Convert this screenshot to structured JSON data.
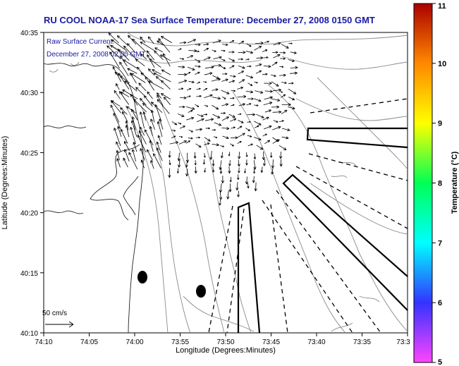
{
  "title": "RU COOL  NOAA-17  Sea Surface Temperature:  December 27, 2008 0150 GMT",
  "current_label": "Raw Surface Current:",
  "current_time": "December 27, 2008 02:00 GMT",
  "scale_label": "50 cm/s",
  "x_axis_label": "Longitude (Degrees:Minutes)",
  "y_axis_label": "Latitude (Degrees:Minutes)",
  "x_ticks": [
    "74:10",
    "74:05",
    "74:00",
    "73:55",
    "73:50",
    "73:45",
    "73:40",
    "73:35",
    "73:3"
  ],
  "y_ticks": [
    "40:35",
    "40:30",
    "40:25",
    "40:20",
    "40:15",
    "40:10"
  ],
  "colorbar": {
    "label": "Temperature (°C)",
    "ticks": [
      "11",
      "10",
      "9",
      "8",
      "7",
      "6",
      "5"
    ],
    "min": 5,
    "max": 11,
    "colors": [
      "#ff44ff",
      "#3333ff",
      "#00ffff",
      "#00ff55",
      "#ffff00",
      "#ff8800",
      "#aa0000"
    ]
  }
}
